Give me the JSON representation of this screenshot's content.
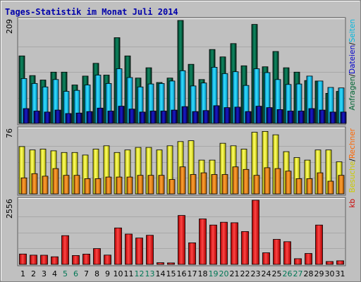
{
  "chart_data": {
    "type": "bar",
    "title": "Tages-Statistik im Monat Juli 2014",
    "categories": [
      "1",
      "2",
      "3",
      "4",
      "5",
      "6",
      "7",
      "8",
      "9",
      "10",
      "11",
      "12",
      "13",
      "14",
      "15",
      "16",
      "17",
      "18",
      "19",
      "20",
      "21",
      "22",
      "23",
      "24",
      "25",
      "26",
      "27",
      "28",
      "29",
      "30",
      "31"
    ],
    "weekend_days": [
      "5",
      "6",
      "12",
      "13",
      "19",
      "20",
      "26",
      "27"
    ],
    "panels": [
      {
        "id": "top",
        "ymax_label": "209",
        "ylim": [
          0,
          209
        ],
        "labels": [
          {
            "text": "Anfragen",
            "color": "#006633"
          },
          {
            "text": "/",
            "color": "#000000"
          },
          {
            "text": "Dateien",
            "color": "#0000cc"
          },
          {
            "text": "/",
            "color": "#000000"
          },
          {
            "text": "Seiten",
            "color": "#00b8e0"
          }
        ],
        "series": [
          {
            "name": "Anfragen",
            "color": "#0a7a5a",
            "values": [
              137,
              97,
              88,
              104,
              104,
              78,
              96,
              122,
              98,
              174,
              137,
              92,
              113,
              83,
              92,
              209,
              120,
              89,
              150,
              135,
              162,
              117,
              201,
              115,
              146,
              113,
              104,
              87,
              86,
              61,
              65
            ]
          },
          {
            "name": "Dateien",
            "color": "#00ccff",
            "values": [
              91,
              81,
              74,
              89,
              65,
              67,
              78,
              98,
              81,
              111,
              93,
              74,
              80,
              81,
              86,
              107,
              76,
              82,
              114,
              101,
              105,
              77,
              111,
              103,
              89,
              79,
              80,
              96,
              86,
              73,
              72
            ]
          },
          {
            "name": "Seiten",
            "color": "#0000aa",
            "values": [
              30,
              25,
              23,
              27,
              20,
              21,
              24,
              31,
              25,
              35,
              29,
              23,
              25,
              25,
              27,
              34,
              24,
              26,
              36,
              32,
              33,
              24,
              35,
              32,
              28,
              25,
              25,
              30,
              27,
              23,
              23
            ]
          }
        ]
      },
      {
        "id": "middle",
        "ymax_label": "76",
        "ylim": [
          0,
          76
        ],
        "labels": [
          {
            "text": "Besuche",
            "color": "#cccc00"
          },
          {
            "text": "/",
            "color": "#000000"
          },
          {
            "text": "Rechner",
            "color": "#ff6600"
          }
        ],
        "series": [
          {
            "name": "Besuche",
            "color": "#ffff00",
            "values": [
              56,
              52,
              53,
              51,
              49,
              49,
              46,
              53,
              57,
              49,
              52,
              55,
              55,
              52,
              57,
              62,
              63,
              40,
              40,
              60,
              57,
              53,
              73,
              74,
              70,
              50,
              43,
              40,
              52,
              52,
              38
            ]
          },
          {
            "name": "Rechner",
            "color": "#ff8c00",
            "values": [
              19,
              24,
              21,
              30,
              22,
              22,
              18,
              18,
              20,
              20,
              20,
              22,
              22,
              22,
              17,
              32,
              23,
              25,
              23,
              23,
              32,
              29,
              22,
              31,
              30,
              27,
              18,
              18,
              25,
              15,
              22
            ]
          }
        ]
      },
      {
        "id": "bottom",
        "ymax_label": "2556",
        "ylim": [
          0,
          2556
        ],
        "labels": [
          {
            "text": "kb",
            "color": "#cc0000"
          }
        ],
        "series": [
          {
            "name": "kb",
            "color": "#ff0000",
            "values": [
              414,
              368,
              364,
              302,
              1146,
              354,
              409,
              630,
              372,
              1452,
              1207,
              1051,
              1160,
              68,
              59,
              1948,
              860,
              1811,
              1568,
              1679,
              1661,
              1310,
              2556,
              464,
              997,
              904,
              228,
              435,
              1566,
              115,
              142
            ]
          }
        ]
      }
    ]
  }
}
